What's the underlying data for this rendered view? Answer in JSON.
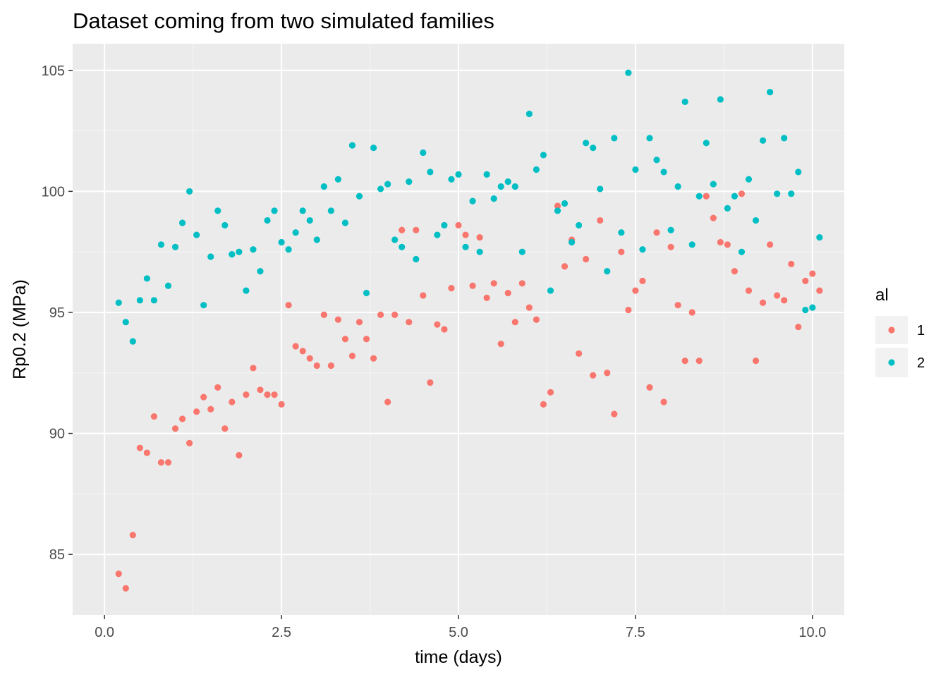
{
  "chart_data": {
    "type": "scatter",
    "title": "Dataset coming from two simulated families",
    "xlabel": "time (days)",
    "ylabel": "Rp0.2 (MPa)",
    "xlim": [
      -0.45,
      10.45
    ],
    "ylim": [
      82.5,
      106.1
    ],
    "x_ticks": [
      0,
      2.5,
      5,
      7.5,
      10
    ],
    "x_tick_labels": [
      "0.0",
      "2.5",
      "5.0",
      "7.5",
      "10.0"
    ],
    "y_ticks": [
      85,
      90,
      95,
      100,
      105
    ],
    "y_tick_labels": [
      "85",
      "90",
      "95",
      "100",
      "105"
    ],
    "grid": true,
    "legend": {
      "title": "al",
      "position": "right"
    },
    "series": [
      {
        "name": "1",
        "color": "#F8766D",
        "points": [
          [
            0.2,
            84.2
          ],
          [
            0.3,
            83.6
          ],
          [
            0.4,
            85.8
          ],
          [
            0.5,
            89.4
          ],
          [
            0.6,
            89.2
          ],
          [
            0.7,
            90.7
          ],
          [
            0.8,
            88.8
          ],
          [
            0.9,
            88.8
          ],
          [
            1.0,
            90.2
          ],
          [
            1.1,
            90.6
          ],
          [
            1.2,
            89.6
          ],
          [
            1.3,
            90.9
          ],
          [
            1.4,
            91.5
          ],
          [
            1.5,
            91.0
          ],
          [
            1.6,
            91.9
          ],
          [
            1.7,
            90.2
          ],
          [
            1.8,
            91.3
          ],
          [
            1.9,
            89.1
          ],
          [
            2.0,
            91.6
          ],
          [
            2.1,
            92.7
          ],
          [
            2.2,
            91.8
          ],
          [
            2.3,
            91.6
          ],
          [
            2.4,
            91.6
          ],
          [
            2.5,
            91.2
          ],
          [
            2.6,
            95.3
          ],
          [
            2.7,
            93.6
          ],
          [
            2.8,
            93.4
          ],
          [
            2.9,
            93.1
          ],
          [
            3.0,
            92.8
          ],
          [
            3.1,
            94.9
          ],
          [
            3.2,
            92.8
          ],
          [
            3.3,
            94.7
          ],
          [
            3.4,
            93.9
          ],
          [
            3.5,
            93.2
          ],
          [
            3.6,
            94.6
          ],
          [
            3.7,
            93.9
          ],
          [
            3.8,
            93.1
          ],
          [
            3.9,
            94.9
          ],
          [
            4.0,
            91.3
          ],
          [
            4.1,
            94.9
          ],
          [
            4.2,
            98.4
          ],
          [
            4.3,
            94.6
          ],
          [
            4.4,
            98.4
          ],
          [
            4.5,
            95.7
          ],
          [
            4.6,
            92.1
          ],
          [
            4.7,
            94.5
          ],
          [
            4.8,
            94.3
          ],
          [
            4.9,
            96.0
          ],
          [
            5.0,
            98.6
          ],
          [
            5.1,
            98.2
          ],
          [
            5.2,
            96.1
          ],
          [
            5.3,
            98.1
          ],
          [
            5.4,
            95.6
          ],
          [
            5.5,
            96.2
          ],
          [
            5.6,
            93.7
          ],
          [
            5.7,
            95.8
          ],
          [
            5.8,
            94.6
          ],
          [
            5.9,
            96.2
          ],
          [
            6.0,
            95.2
          ],
          [
            6.1,
            94.7
          ],
          [
            6.2,
            91.2
          ],
          [
            6.3,
            91.7
          ],
          [
            6.4,
            99.4
          ],
          [
            6.5,
            96.9
          ],
          [
            6.6,
            98.0
          ],
          [
            6.7,
            93.3
          ],
          [
            6.8,
            97.2
          ],
          [
            6.9,
            92.4
          ],
          [
            7.0,
            98.8
          ],
          [
            7.1,
            92.5
          ],
          [
            7.2,
            90.8
          ],
          [
            7.3,
            97.5
          ],
          [
            7.4,
            95.1
          ],
          [
            7.5,
            95.9
          ],
          [
            7.6,
            96.3
          ],
          [
            7.7,
            91.9
          ],
          [
            7.8,
            98.3
          ],
          [
            7.9,
            91.3
          ],
          [
            8.0,
            97.7
          ],
          [
            8.1,
            95.3
          ],
          [
            8.2,
            93.0
          ],
          [
            8.3,
            95.0
          ],
          [
            8.4,
            93.0
          ],
          [
            8.5,
            99.8
          ],
          [
            8.6,
            98.9
          ],
          [
            8.7,
            97.9
          ],
          [
            8.8,
            97.8
          ],
          [
            8.9,
            96.7
          ],
          [
            9.0,
            99.9
          ],
          [
            9.1,
            95.9
          ],
          [
            9.2,
            93.0
          ],
          [
            9.3,
            95.4
          ],
          [
            9.4,
            97.8
          ],
          [
            9.5,
            95.7
          ],
          [
            9.6,
            95.5
          ],
          [
            9.7,
            97.0
          ],
          [
            9.8,
            94.4
          ],
          [
            9.9,
            96.3
          ],
          [
            10.0,
            96.6
          ],
          [
            10.1,
            95.9
          ]
        ]
      },
      {
        "name": "2",
        "color": "#00BFC4",
        "points": [
          [
            0.2,
            95.4
          ],
          [
            0.3,
            94.6
          ],
          [
            0.4,
            93.8
          ],
          [
            0.5,
            95.5
          ],
          [
            0.6,
            96.4
          ],
          [
            0.7,
            95.5
          ],
          [
            0.8,
            97.8
          ],
          [
            0.9,
            96.1
          ],
          [
            1.0,
            97.7
          ],
          [
            1.1,
            98.7
          ],
          [
            1.2,
            100.0
          ],
          [
            1.3,
            98.2
          ],
          [
            1.4,
            95.3
          ],
          [
            1.5,
            97.3
          ],
          [
            1.6,
            99.2
          ],
          [
            1.7,
            98.6
          ],
          [
            1.8,
            97.4
          ],
          [
            1.9,
            97.5
          ],
          [
            2.0,
            95.9
          ],
          [
            2.1,
            97.6
          ],
          [
            2.2,
            96.7
          ],
          [
            2.3,
            98.8
          ],
          [
            2.4,
            99.2
          ],
          [
            2.5,
            97.9
          ],
          [
            2.6,
            97.6
          ],
          [
            2.7,
            98.3
          ],
          [
            2.8,
            99.2
          ],
          [
            2.9,
            98.8
          ],
          [
            3.0,
            98.0
          ],
          [
            3.1,
            100.2
          ],
          [
            3.2,
            99.2
          ],
          [
            3.3,
            100.5
          ],
          [
            3.4,
            98.7
          ],
          [
            3.5,
            101.9
          ],
          [
            3.6,
            99.8
          ],
          [
            3.7,
            95.8
          ],
          [
            3.8,
            101.8
          ],
          [
            3.9,
            100.1
          ],
          [
            4.0,
            100.3
          ],
          [
            4.1,
            98.0
          ],
          [
            4.2,
            97.7
          ],
          [
            4.3,
            100.4
          ],
          [
            4.4,
            97.2
          ],
          [
            4.5,
            101.6
          ],
          [
            4.6,
            100.8
          ],
          [
            4.7,
            98.2
          ],
          [
            4.8,
            98.6
          ],
          [
            4.9,
            100.5
          ],
          [
            5.0,
            100.7
          ],
          [
            5.1,
            97.7
          ],
          [
            5.2,
            99.6
          ],
          [
            5.3,
            97.5
          ],
          [
            5.4,
            100.7
          ],
          [
            5.5,
            99.7
          ],
          [
            5.6,
            100.2
          ],
          [
            5.7,
            100.4
          ],
          [
            5.8,
            100.2
          ],
          [
            5.9,
            97.5
          ],
          [
            6.0,
            103.2
          ],
          [
            6.1,
            100.9
          ],
          [
            6.2,
            101.5
          ],
          [
            6.3,
            95.9
          ],
          [
            6.4,
            99.2
          ],
          [
            6.5,
            99.5
          ],
          [
            6.6,
            97.9
          ],
          [
            6.7,
            98.6
          ],
          [
            6.8,
            102.0
          ],
          [
            6.9,
            101.8
          ],
          [
            7.0,
            100.1
          ],
          [
            7.1,
            96.7
          ],
          [
            7.2,
            102.2
          ],
          [
            7.3,
            98.3
          ],
          [
            7.4,
            104.9
          ],
          [
            7.5,
            100.9
          ],
          [
            7.6,
            97.6
          ],
          [
            7.7,
            102.2
          ],
          [
            7.8,
            101.3
          ],
          [
            7.9,
            100.8
          ],
          [
            8.0,
            98.4
          ],
          [
            8.1,
            100.2
          ],
          [
            8.2,
            103.7
          ],
          [
            8.3,
            97.8
          ],
          [
            8.4,
            99.8
          ],
          [
            8.5,
            102.0
          ],
          [
            8.6,
            100.3
          ],
          [
            8.7,
            103.8
          ],
          [
            8.8,
            99.3
          ],
          [
            8.9,
            99.8
          ],
          [
            9.0,
            97.5
          ],
          [
            9.1,
            100.5
          ],
          [
            9.2,
            98.8
          ],
          [
            9.3,
            102.1
          ],
          [
            9.4,
            104.1
          ],
          [
            9.5,
            99.9
          ],
          [
            9.6,
            102.2
          ],
          [
            9.7,
            99.9
          ],
          [
            9.8,
            100.8
          ],
          [
            9.9,
            95.1
          ],
          [
            10.0,
            95.2
          ],
          [
            10.1,
            98.1
          ]
        ]
      }
    ]
  }
}
